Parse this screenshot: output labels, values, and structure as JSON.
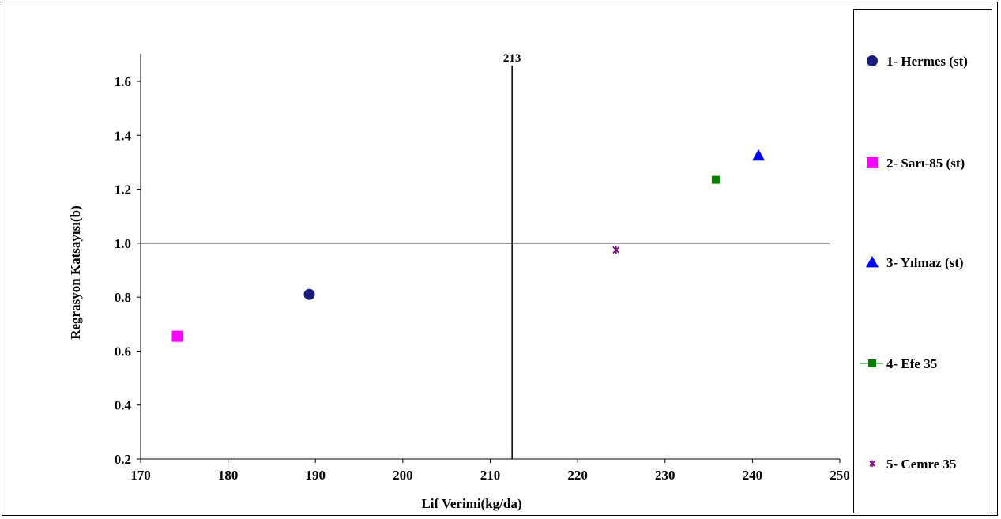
{
  "chart_data": {
    "type": "scatter",
    "xlabel": "Lif Verimi(kg/da)",
    "ylabel": "Regrasyon Katsayısı(b)",
    "xlim": [
      170,
      250
    ],
    "ylim": [
      0.2,
      1.7
    ],
    "xticks": [
      170,
      180,
      190,
      200,
      210,
      220,
      230,
      240,
      250
    ],
    "yticks": [
      0.2,
      0.4,
      0.6,
      0.8,
      1.0,
      1.2,
      1.4,
      1.6
    ],
    "yticklabels": [
      "0.2",
      "0.4",
      "0.6",
      "0.8",
      "1.0",
      "1.2",
      "1.4",
      "1.6"
    ],
    "reference_lines": {
      "vertical_x": 212.5,
      "vertical_label": "213",
      "horizontal_y": 1.0
    },
    "legend_position": "right",
    "series": [
      {
        "name": "1- Hermes (st)",
        "marker": "circle",
        "color": "#1a1a7a",
        "x": 189.3,
        "y": 0.81
      },
      {
        "name": "2- Sarı-85 (st)",
        "marker": "square",
        "color": "#ff00ff",
        "x": 174.2,
        "y": 0.655
      },
      {
        "name": "3- Yılmaz (st)",
        "marker": "triangle",
        "color": "#0000ff",
        "x": 240.7,
        "y": 1.325
      },
      {
        "name": "4- Efe 35",
        "marker": "square-line",
        "color": "#008000",
        "x": 235.8,
        "y": 1.235
      },
      {
        "name": "5- Cemre 35",
        "marker": "star",
        "color": "#800080",
        "x": 224.4,
        "y": 0.975
      }
    ]
  }
}
